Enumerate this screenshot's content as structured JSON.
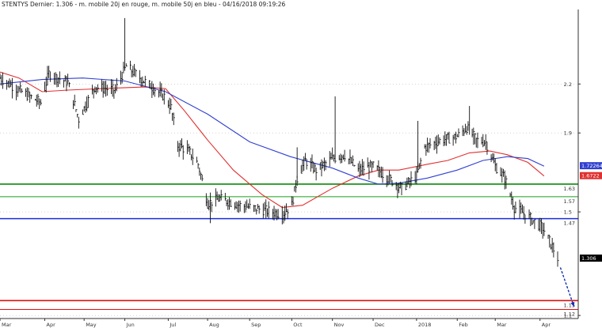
{
  "chart_data": {
    "type": "ohlc",
    "title": "STENTYS Dernier: 1.306 - m. mobile 20j en rouge, m. mobile 50j en bleu - 04/16/2018 09:19:26",
    "xlabel": "",
    "ylabel": "",
    "y_scale": "log",
    "ylim": [
      1.09,
      2.75
    ],
    "x_range": [
      "2017-03-01",
      "2018-04-30"
    ],
    "grid": "horizontal dotted at labeled ticks",
    "months": [
      {
        "label": "Mar",
        "date": "2017-03-01"
      },
      {
        "label": "Apr",
        "date": "2017-04-03"
      },
      {
        "label": "May",
        "date": "2017-05-02"
      },
      {
        "label": "Jun",
        "date": "2017-06-01"
      },
      {
        "label": "Jul",
        "date": "2017-07-03"
      },
      {
        "label": "Aug",
        "date": "2017-08-01"
      },
      {
        "label": "Sep",
        "date": "2017-09-01"
      },
      {
        "label": "Oct",
        "date": "2017-10-02"
      },
      {
        "label": "Nov",
        "date": "2017-11-01"
      },
      {
        "label": "Dec",
        "date": "2017-12-01"
      },
      {
        "label": "2018",
        "date": "2018-01-02"
      },
      {
        "label": "Feb",
        "date": "2018-02-01"
      },
      {
        "label": "Mar",
        "date": "2018-03-01"
      },
      {
        "label": "Apr",
        "date": "2018-04-03"
      }
    ],
    "y_ticks": [
      {
        "label": "2.2",
        "value": 2.2
      },
      {
        "label": "1.9",
        "value": 1.9
      },
      {
        "label": "1.5",
        "value": 1.5
      },
      {
        "label": "1.1",
        "value": 1.1
      }
    ],
    "price_path": [
      [
        "2017-03-01",
        2.24
      ],
      [
        "2017-03-15",
        2.16
      ],
      [
        "2017-03-31",
        2.08
      ],
      [
        "2017-04-06",
        2.27
      ],
      [
        "2017-04-20",
        2.21
      ],
      [
        "2017-04-28",
        1.98
      ],
      [
        "2017-05-10",
        2.18
      ],
      [
        "2017-05-25",
        2.16
      ],
      [
        "2017-06-02",
        2.32
      ],
      [
        "2017-06-15",
        2.22
      ],
      [
        "2017-06-30",
        2.12
      ],
      [
        "2017-07-05",
        2.05
      ],
      [
        "2017-07-10",
        1.83
      ],
      [
        "2017-07-18",
        1.8
      ],
      [
        "2017-07-25",
        1.73
      ],
      [
        "2017-08-01",
        1.54
      ],
      [
        "2017-08-10",
        1.56
      ],
      [
        "2017-08-25",
        1.53
      ],
      [
        "2017-09-10",
        1.51
      ],
      [
        "2017-09-25",
        1.49
      ],
      [
        "2017-10-02",
        1.53
      ],
      [
        "2017-10-06",
        1.66
      ],
      [
        "2017-10-12",
        1.75
      ],
      [
        "2017-10-20",
        1.7
      ],
      [
        "2017-11-01",
        1.76
      ],
      [
        "2017-11-10",
        1.78
      ],
      [
        "2017-11-20",
        1.7
      ],
      [
        "2017-12-01",
        1.72
      ],
      [
        "2017-12-12",
        1.66
      ],
      [
        "2017-12-22",
        1.61
      ],
      [
        "2018-01-02",
        1.67
      ],
      [
        "2018-01-08",
        1.82
      ],
      [
        "2018-01-20",
        1.86
      ],
      [
        "2018-02-01",
        1.88
      ],
      [
        "2018-02-08",
        1.93
      ],
      [
        "2018-02-15",
        1.86
      ],
      [
        "2018-02-22",
        1.85
      ],
      [
        "2018-03-01",
        1.72
      ],
      [
        "2018-03-08",
        1.66
      ],
      [
        "2018-03-15",
        1.52
      ],
      [
        "2018-03-25",
        1.48
      ],
      [
        "2018-04-05",
        1.43
      ],
      [
        "2018-04-16",
        1.306
      ]
    ],
    "spikes": [
      [
        "2017-06-01",
        2.68
      ],
      [
        "2017-07-13",
        1.87
      ],
      [
        "2017-10-06",
        1.82
      ],
      [
        "2017-11-03",
        2.12
      ],
      [
        "2018-01-03",
        1.97
      ],
      [
        "2018-02-10",
        2.06
      ],
      [
        "2017-08-03",
        1.45
      ],
      [
        "2017-09-27",
        1.46
      ]
    ],
    "series": [
      {
        "name": "m. mobile 20j",
        "color": "#e03030",
        "values": [
          [
            "2017-03-01",
            2.28
          ],
          [
            "2017-03-15",
            2.24
          ],
          [
            "2017-04-01",
            2.15
          ],
          [
            "2017-04-20",
            2.16
          ],
          [
            "2017-05-15",
            2.17
          ],
          [
            "2017-06-15",
            2.18
          ],
          [
            "2017-07-01",
            2.17
          ],
          [
            "2017-07-15",
            2.03
          ],
          [
            "2017-08-01",
            1.86
          ],
          [
            "2017-08-20",
            1.7
          ],
          [
            "2017-09-10",
            1.58
          ],
          [
            "2017-09-25",
            1.52
          ],
          [
            "2017-10-10",
            1.53
          ],
          [
            "2017-11-01",
            1.61
          ],
          [
            "2017-11-20",
            1.67
          ],
          [
            "2017-12-05",
            1.7
          ],
          [
            "2017-12-20",
            1.7
          ],
          [
            "2018-01-10",
            1.73
          ],
          [
            "2018-01-25",
            1.75
          ],
          [
            "2018-02-10",
            1.79
          ],
          [
            "2018-02-25",
            1.8
          ],
          [
            "2018-03-10",
            1.78
          ],
          [
            "2018-03-25",
            1.74
          ],
          [
            "2018-04-06",
            1.67
          ]
        ]
      },
      {
        "name": "m. mobile 50j",
        "color": "#3040d0",
        "values": [
          [
            "2017-03-01",
            2.2
          ],
          [
            "2017-04-01",
            2.23
          ],
          [
            "2017-05-01",
            2.24
          ],
          [
            "2017-06-01",
            2.22
          ],
          [
            "2017-07-01",
            2.15
          ],
          [
            "2017-08-01",
            2.01
          ],
          [
            "2017-09-01",
            1.85
          ],
          [
            "2017-10-01",
            1.77
          ],
          [
            "2017-11-01",
            1.71
          ],
          [
            "2017-11-20",
            1.66
          ],
          [
            "2017-12-05",
            1.63
          ],
          [
            "2017-12-20",
            1.635
          ],
          [
            "2018-01-10",
            1.66
          ],
          [
            "2018-02-01",
            1.7
          ],
          [
            "2018-02-20",
            1.75
          ],
          [
            "2018-03-10",
            1.77
          ],
          [
            "2018-03-25",
            1.76
          ],
          [
            "2018-04-06",
            1.72
          ]
        ]
      }
    ],
    "levels": [
      {
        "label": "1.63",
        "value": 1.63,
        "color": "#0a8a0a",
        "width": 1.6
      },
      {
        "label": "1.57",
        "value": 1.57,
        "color": "#18a018",
        "width": 1
      },
      {
        "label": "1.47",
        "value": 1.47,
        "color": "#1a2ee0",
        "width": 1.6
      },
      {
        "label": "1.15",
        "value": 1.15,
        "color": "#e01010",
        "width": 1.6
      },
      {
        "label": "1.12",
        "value": 1.12,
        "color": "#e01010",
        "width": 1
      }
    ],
    "value_tags": [
      {
        "label": "1.72264",
        "value": 1.7226,
        "bg": "#3040d0",
        "fg": "#ffffff"
      },
      {
        "label": "1.6722",
        "value": 1.672,
        "bg": "#e03030",
        "fg": "#ffffff"
      },
      {
        "label": "1.306",
        "value": 1.306,
        "bg": "#000000",
        "fg": "#ffffff"
      }
    ],
    "arrow": {
      "color": "#1030b0",
      "from": [
        "2018-04-18",
        1.27
      ],
      "to": [
        "2018-04-28",
        1.13
      ]
    }
  }
}
